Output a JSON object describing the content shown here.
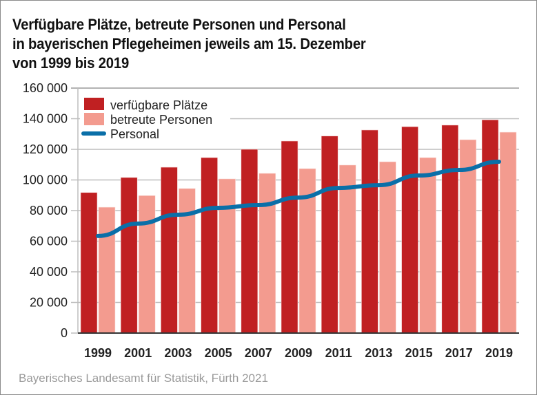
{
  "chart_data": {
    "type": "bar",
    "title_lines": [
      "Verfügbare Plätze, betreute Personen und Personal",
      "in bayerischen Pflegeheimen jeweils am 15. Dezember",
      "von 1999 bis 2019"
    ],
    "xlabel": "",
    "ylabel": "",
    "categories": [
      "1999",
      "2001",
      "2003",
      "2005",
      "2007",
      "2009",
      "2011",
      "2013",
      "2015",
      "2017",
      "2019"
    ],
    "ylim": [
      0,
      160000
    ],
    "yticks": [
      0,
      20000,
      40000,
      60000,
      80000,
      100000,
      120000,
      140000,
      160000
    ],
    "ytick_labels": [
      "0",
      "20 000",
      "40 000",
      "60 000",
      "80 000",
      "100 000",
      "120 000",
      "140 000",
      "160 000"
    ],
    "grid": true,
    "legend_position": "top-left",
    "series": [
      {
        "name": "verfügbare Plätze",
        "kind": "bar",
        "color": "#c02022",
        "values": [
          91800,
          101600,
          108300,
          114600,
          120000,
          125400,
          128700,
          132600,
          134800,
          135800,
          139300
        ]
      },
      {
        "name": "betreute Personen",
        "kind": "bar",
        "color": "#f39b8f",
        "values": [
          82200,
          89800,
          94400,
          100700,
          104300,
          107400,
          109700,
          111900,
          114600,
          126300,
          131200
        ]
      },
      {
        "name": "Personal",
        "kind": "line",
        "color": "#0a6fa8",
        "values": [
          63400,
          71500,
          77300,
          81800,
          83600,
          88500,
          94800,
          96600,
          102900,
          106500,
          111900
        ]
      }
    ]
  },
  "source": "Bayerisches Landesamt für Statistik, Fürth 2021"
}
